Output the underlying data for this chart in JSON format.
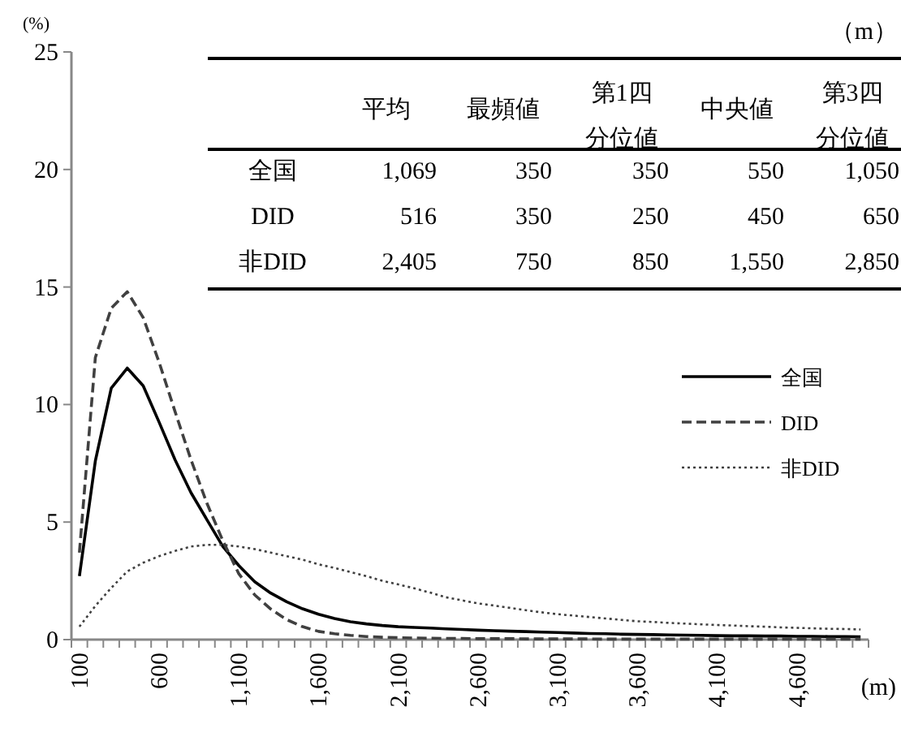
{
  "chart_data": [
    {
      "type": "line",
      "ylabel": "(%)",
      "xlabel": "(m)",
      "categories": [
        "100",
        null,
        null,
        null,
        null,
        "600",
        null,
        null,
        null,
        null,
        "1,100",
        null,
        null,
        null,
        null,
        "1,600",
        null,
        null,
        null,
        null,
        "2,100",
        null,
        null,
        null,
        null,
        "2,600",
        null,
        null,
        null,
        null,
        "3,100",
        null,
        null,
        null,
        null,
        "3,600",
        null,
        null,
        null,
        null,
        "4,100",
        null,
        null,
        null,
        null,
        "4,600",
        null,
        null,
        null,
        null
      ],
      "ylim": [
        0,
        25
      ],
      "yticks": [
        0,
        5,
        10,
        15,
        20,
        25
      ],
      "grid": false,
      "legend": "right",
      "marker": "none",
      "series": [
        {
          "name": "全国",
          "color": "#000000",
          "line_style": "solid",
          "values": [
            2.7,
            7.6,
            10.7,
            11.55,
            10.8,
            9.25,
            7.65,
            6.25,
            5.1,
            3.96,
            3.15,
            2.46,
            1.98,
            1.61,
            1.31,
            1.08,
            0.9,
            0.76,
            0.67,
            0.6,
            0.55,
            0.52,
            0.49,
            0.46,
            0.43,
            0.4,
            0.38,
            0.36,
            0.34,
            0.32,
            0.3,
            0.28,
            0.26,
            0.25,
            0.23,
            0.22,
            0.21,
            0.2,
            0.19,
            0.18,
            0.17,
            0.16,
            0.16,
            0.15,
            0.15,
            0.14,
            0.14,
            0.13,
            0.13,
            0.12
          ]
        },
        {
          "name": "DID",
          "color": "#404040",
          "line_style": "dashed",
          "values": [
            3.7,
            12.0,
            14.1,
            14.8,
            13.7,
            11.8,
            9.7,
            7.65,
            5.8,
            4.2,
            2.8,
            1.9,
            1.3,
            0.85,
            0.55,
            0.35,
            0.25,
            0.18,
            0.13,
            0.1,
            0.08,
            0.07,
            0.06,
            0.05,
            0.05,
            0.04,
            0.04,
            0.04,
            0.03,
            0.03,
            0.03,
            0.03,
            0.03,
            0.02,
            0.02,
            0.02,
            0.02,
            0.02,
            0.02,
            0.02,
            0.02,
            0.02,
            0.02,
            0.02,
            0.02,
            0.02,
            0.02,
            0.02,
            0.02,
            0.02
          ]
        },
        {
          "name": "非DID",
          "color": "#404040",
          "line_style": "dotted",
          "values": [
            0.55,
            1.43,
            2.2,
            2.9,
            3.27,
            3.55,
            3.77,
            3.96,
            4.03,
            4.03,
            3.96,
            3.85,
            3.7,
            3.55,
            3.4,
            3.2,
            3.05,
            2.87,
            2.7,
            2.5,
            2.35,
            2.18,
            2.0,
            1.8,
            1.67,
            1.54,
            1.45,
            1.35,
            1.25,
            1.16,
            1.08,
            1.02,
            0.96,
            0.9,
            0.84,
            0.78,
            0.75,
            0.71,
            0.68,
            0.65,
            0.62,
            0.6,
            0.57,
            0.55,
            0.52,
            0.5,
            0.48,
            0.46,
            0.45,
            0.43
          ]
        }
      ]
    },
    {
      "type": "other",
      "annotations": [
        "（m）"
      ],
      "categories": [
        "平均",
        "最頻値",
        "第1四分位値",
        "中央値",
        "第3四分位値"
      ],
      "y_categories": [
        "全国",
        "DID",
        "非DID"
      ],
      "cell_labels": [
        [
          "1,069",
          "350",
          "350",
          "550",
          "1,050"
        ],
        [
          "516",
          "350",
          "250",
          "450",
          "650"
        ],
        [
          "2,405",
          "750",
          "850",
          "1,550",
          "2,850"
        ]
      ]
    }
  ]
}
